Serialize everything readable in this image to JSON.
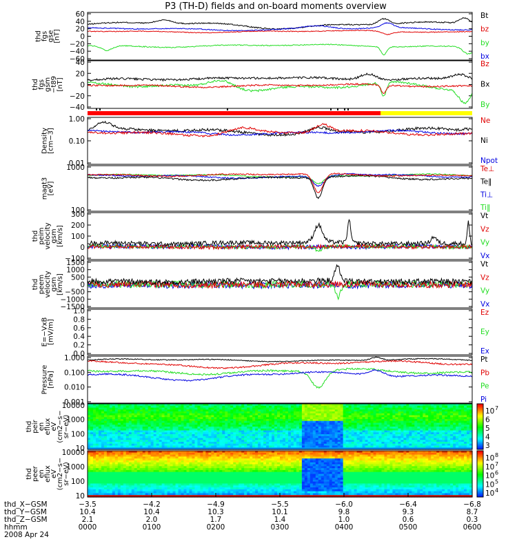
{
  "title": "P3 (TH-D) fields and on-board moments overview",
  "colors": {
    "black": "#000000",
    "red": "#e00000",
    "green": "#22dd22",
    "blue": "#0000e0",
    "ss_red": "#ff0000",
    "ss_yellow": "#ffff00"
  },
  "chart_data": [
    {
      "type": "line",
      "id": "bgse",
      "ylabel": [
        "thd",
        "fgs",
        "gse",
        "[nT]"
      ],
      "yticks": [
        "60",
        "40",
        "20",
        "0",
        "−20",
        "−40",
        "−60"
      ],
      "ylim": [
        -60,
        60
      ],
      "legend": [
        {
          "label": "Bt",
          "color": "#000000"
        },
        {
          "label": "bz",
          "color": "#e00000"
        },
        {
          "label": "by",
          "color": "#22dd22"
        },
        {
          "label": "bx",
          "color": "#0000e0"
        }
      ],
      "series": [
        {
          "color": "#000000",
          "base": 30,
          "amp": 6,
          "noise": 1.5,
          "bumps": [
            [
              0.2,
              10,
              0.03
            ],
            [
              0.5,
              -6,
              0.1
            ],
            [
              0.77,
              14,
              0.02
            ],
            [
              0.98,
              15,
              0.02
            ]
          ]
        },
        {
          "color": "#0000e0",
          "base": 18,
          "amp": 4,
          "noise": 1.2,
          "bumps": [
            [
              0.6,
              8,
              0.05
            ],
            [
              0.78,
              12,
              0.02
            ]
          ]
        },
        {
          "color": "#e00000",
          "base": 12,
          "amp": 3,
          "noise": 1.0,
          "bumps": [
            [
              0.78,
              -8,
              0.02
            ]
          ]
        },
        {
          "color": "#22dd22",
          "base": -24,
          "amp": 4,
          "noise": 1.2,
          "bumps": [
            [
              0.05,
              -12,
              0.02
            ],
            [
              0.77,
              -20,
              0.01
            ],
            [
              0.99,
              -18,
              0.02
            ]
          ]
        }
      ]
    },
    {
      "type": "line",
      "id": "bgsm",
      "ylabel": [
        "thd",
        "fgs",
        "gsm",
        "−t89",
        "[nT]"
      ],
      "yticks": [
        "40",
        "20",
        "0",
        "−20",
        "−40"
      ],
      "ylim": [
        -45,
        45
      ],
      "legend": [
        {
          "label": "Bz",
          "color": "#e00000"
        },
        {
          "label": "Bx",
          "color": "#000000"
        },
        {
          "label": "By",
          "color": "#22dd22"
        }
      ],
      "series": [
        {
          "color": "#000000",
          "base": 8,
          "amp": 4,
          "noise": 2,
          "bumps": [
            [
              0.5,
              8,
              0.15
            ],
            [
              0.73,
              12,
              0.03
            ],
            [
              0.97,
              10,
              0.03
            ]
          ]
        },
        {
          "color": "#22dd22",
          "base": -5,
          "amp": 10,
          "noise": 2,
          "bumps": [
            [
              0.35,
              20,
              0.05
            ],
            [
              0.77,
              -25,
              0.01
            ],
            [
              0.98,
              -25,
              0.02
            ]
          ]
        },
        {
          "color": "#e00000",
          "base": -2,
          "amp": 3,
          "noise": 1.5,
          "bumps": [
            [
              0.77,
              -15,
              0.01
            ]
          ]
        }
      ],
      "ticksbar": true
    },
    {
      "type": "line",
      "id": "density",
      "ylabel": [
        "Density",
        "[cm−3]"
      ],
      "yticks": [
        "1.00",
        "0.10",
        "0.01"
      ],
      "log": true,
      "ylim": [
        0.01,
        1.2
      ],
      "legend": [
        {
          "label": "Ne",
          "color": "#e00000"
        },
        {
          "label": "Ni",
          "color": "#000000"
        },
        {
          "label": "Npot",
          "color": "#0000e0"
        }
      ],
      "series": [
        {
          "color": "#000000",
          "base": -0.55,
          "amp": 0.15,
          "noise": 0.06,
          "bumps": [
            [
              0.04,
              0.35,
              0.03
            ],
            [
              0.6,
              0.2,
              0.03
            ],
            [
              0.99,
              0.1,
              0.02
            ]
          ]
        },
        {
          "color": "#0000e0",
          "base": -0.6,
          "amp": 0.1,
          "noise": 0.04,
          "bumps": []
        },
        {
          "color": "#e00000",
          "base": -0.62,
          "amp": 0.12,
          "noise": 0.05,
          "bumps": [
            [
              0.4,
              0.25,
              0.05
            ],
            [
              0.61,
              0.35,
              0.03
            ]
          ]
        }
      ]
    },
    {
      "type": "line",
      "id": "temp",
      "ylabel": [
        "magt3",
        "[eV]"
      ],
      "yticks": [
        "1000",
        "100"
      ],
      "log": true,
      "ylim": [
        20,
        15000
      ],
      "legend": [
        {
          "label": "Te⊥",
          "color": "#e00000"
        },
        {
          "label": "Te‖",
          "color": "#000000"
        },
        {
          "label": "Ti⊥",
          "color": "#0000e0"
        },
        {
          "label": "Ti‖",
          "color": "#22dd22"
        }
      ],
      "series": [
        {
          "color": "#22dd22",
          "base": 3.55,
          "amp": 0.1,
          "noise": 0.03,
          "bumps": [
            [
              0.6,
              -0.5,
              0.02
            ]
          ]
        },
        {
          "color": "#0000e0",
          "base": 3.5,
          "amp": 0.12,
          "noise": 0.04,
          "bumps": [
            [
              0.6,
              -0.6,
              0.02
            ],
            [
              0.68,
              0.15,
              0.04
            ]
          ]
        },
        {
          "color": "#000000",
          "base": 3.4,
          "amp": 0.15,
          "noise": 0.05,
          "bumps": [
            [
              0.6,
              -1.3,
              0.015
            ]
          ]
        },
        {
          "color": "#e00000",
          "base": 3.6,
          "amp": 0.1,
          "noise": 0.04,
          "bumps": [
            [
              0.6,
              -1.2,
              0.018
            ]
          ]
        }
      ]
    },
    {
      "type": "line",
      "id": "peim",
      "ylabel": [
        "thd",
        "peim",
        "velocity",
        "gsm",
        "[km/s]"
      ],
      "yticks": [
        "300",
        "200",
        "100",
        "0",
        "−100"
      ],
      "ylim": [
        -120,
        320
      ],
      "legend": [
        {
          "label": "Vt",
          "color": "#000000"
        },
        {
          "label": "Vz",
          "color": "#e00000"
        },
        {
          "label": "Vy",
          "color": "#22dd22"
        },
        {
          "label": "Vx",
          "color": "#0000e0"
        }
      ],
      "series": [
        {
          "color": "#0000e0",
          "base": 0,
          "amp": 5,
          "noise": 20,
          "bumps": []
        },
        {
          "color": "#22dd22",
          "base": 0,
          "amp": 5,
          "noise": 18,
          "bumps": [
            [
              0.6,
              -50,
              0.01
            ]
          ]
        },
        {
          "color": "#e00000",
          "base": 0,
          "amp": 5,
          "noise": 18,
          "bumps": []
        },
        {
          "color": "#000000",
          "base": 35,
          "amp": 10,
          "noise": 20,
          "bumps": [
            [
              0.6,
              160,
              0.015
            ],
            [
              0.68,
              200,
              0.006
            ],
            [
              0.9,
              60,
              0.01
            ],
            [
              0.99,
              200,
              0.004
            ]
          ]
        }
      ]
    },
    {
      "type": "line",
      "id": "peem",
      "ylabel": [
        "thd",
        "peem",
        "velocity",
        "gsm",
        "[km/s]"
      ],
      "yticks": [
        "1500",
        "1000",
        "500",
        "0",
        "−500",
        "−1000",
        "−1500"
      ],
      "ylim": [
        -1500,
        1500
      ],
      "legend": [
        {
          "label": "Vt",
          "color": "#000000"
        },
        {
          "label": "Vz",
          "color": "#e00000"
        },
        {
          "label": "Vy",
          "color": "#22dd22"
        },
        {
          "label": "Vx",
          "color": "#0000e0"
        }
      ],
      "series": [
        {
          "color": "#0000e0",
          "base": -50,
          "amp": 30,
          "noise": 200,
          "bumps": []
        },
        {
          "color": "#22dd22",
          "base": 0,
          "amp": 30,
          "noise": 220,
          "bumps": [
            [
              0.65,
              -800,
              0.01
            ]
          ]
        },
        {
          "color": "#e00000",
          "base": 0,
          "amp": 30,
          "noise": 200,
          "bumps": []
        },
        {
          "color": "#000000",
          "base": 200,
          "amp": 50,
          "noise": 180,
          "bumps": [
            [
              0.65,
              900,
              0.01
            ]
          ]
        }
      ]
    },
    {
      "type": "line",
      "id": "exb",
      "ylabel": [
        "E=−VxB",
        "[mV/m]"
      ],
      "yticks": [
        "1.0",
        "0.8",
        "0.6",
        "0.4",
        "0.2",
        "0.0"
      ],
      "ylim": [
        0,
        1
      ],
      "legend": [
        {
          "label": "Ez",
          "color": "#e00000"
        },
        {
          "label": "Ey",
          "color": "#22dd22"
        },
        {
          "label": "Ex",
          "color": "#0000e0"
        }
      ],
      "series": []
    },
    {
      "type": "line",
      "id": "pressure",
      "ylabel": [
        "Pressure",
        "[nPa]"
      ],
      "yticks": [
        "1.000",
        "0.100",
        "0.010",
        "0.001"
      ],
      "log": true,
      "ylim": [
        0.001,
        1.3
      ],
      "legend": [
        {
          "label": "Pt",
          "color": "#000000"
        },
        {
          "label": "Pb",
          "color": "#e00000"
        },
        {
          "label": "Pe",
          "color": "#22dd22"
        },
        {
          "label": "Pi",
          "color": "#0000e0"
        }
      ],
      "series": [
        {
          "color": "#000000",
          "base": -0.15,
          "amp": 0.1,
          "noise": 0.03,
          "bumps": [
            [
              0.75,
              0.2,
              0.02
            ]
          ]
        },
        {
          "color": "#e00000",
          "base": -0.35,
          "amp": 0.15,
          "noise": 0.05,
          "bumps": [
            [
              0.3,
              -0.25,
              0.12
            ]
          ]
        },
        {
          "color": "#22dd22",
          "base": -0.9,
          "amp": 0.2,
          "noise": 0.06,
          "bumps": [
            [
              0.6,
              -1.1,
              0.025
            ]
          ]
        },
        {
          "color": "#0000e0",
          "base": -1.1,
          "amp": 0.2,
          "noise": 0.05,
          "bumps": [
            [
              0.3,
              -0.3,
              0.1
            ],
            [
              0.75,
              0.4,
              0.03
            ]
          ]
        }
      ]
    },
    {
      "type": "heatmap",
      "id": "peir",
      "ylabel": [
        "thd",
        "peir",
        "en",
        "eflux",
        "eV",
        "(cm2−s−",
        "sr−eV)"
      ],
      "yticks": [
        "10000",
        "1000",
        "100",
        "10"
      ],
      "cbticks": [
        "10",
        "6",
        "5",
        "4",
        "3"
      ],
      "cbexp": [
        "7",
        "",
        "",
        "",
        ""
      ]
    },
    {
      "type": "heatmap",
      "id": "peer",
      "ylabel": [
        "thd",
        "peer",
        "en",
        "eflux",
        "eV",
        "(cm2−s−",
        "sr−eV)"
      ],
      "yticks": [
        "10000",
        "1000",
        "100",
        "10"
      ],
      "cbticks": [
        "10",
        "10",
        "10",
        "10",
        "10"
      ],
      "cbexp": [
        "8",
        "7",
        "6",
        "5",
        "4"
      ]
    }
  ],
  "footer": {
    "rows": [
      {
        "label": "thd_X−GSM",
        "values": [
          "−3.5",
          "−4.2",
          "−4.9",
          "−5.5",
          "−6.0",
          "−6.4",
          "−6.8"
        ]
      },
      {
        "label": "thd_Y−GSM",
        "values": [
          "10.4",
          "10.4",
          "10.3",
          "10.1",
          "9.8",
          "9.3",
          "8.7"
        ]
      },
      {
        "label": "thd_Z−GSM",
        "values": [
          "2.1",
          "2.0",
          "1.7",
          "1.4",
          "1.0",
          "0.6",
          "0.3"
        ]
      },
      {
        "label": "hhmm",
        "values": [
          "0000",
          "0100",
          "0200",
          "0300",
          "0400",
          "0500",
          "0600"
        ]
      }
    ],
    "date": "2008 Apr 24"
  }
}
